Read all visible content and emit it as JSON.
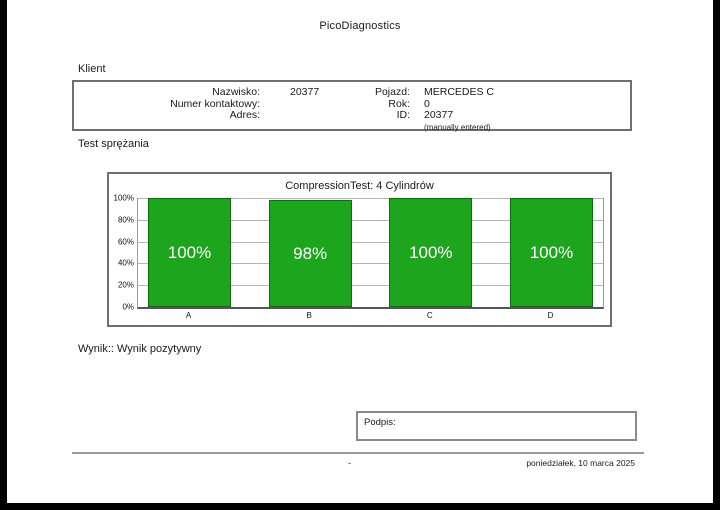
{
  "page": {
    "title": "PicoDiagnostics",
    "footer": {
      "center": "-",
      "date": "poniedziałek, 10 marca 2025"
    }
  },
  "client": {
    "section_label": "Klient",
    "fields_left": [
      {
        "label": "Nazwisko:",
        "value": "20377"
      },
      {
        "label": "Numer kontaktowy:",
        "value": ""
      },
      {
        "label": "Adres:",
        "value": ""
      }
    ],
    "fields_right": [
      {
        "label": "Pojazd:",
        "value": "MERCEDES C"
      },
      {
        "label": "Rok:",
        "value": "0"
      },
      {
        "label": "ID:",
        "value": "20377"
      },
      {
        "label": "",
        "value": "(manually entered)"
      }
    ]
  },
  "test": {
    "section_label": "Test sprężania",
    "result_text": "Wynik:: Wynik pozytywny"
  },
  "chart_data": {
    "type": "bar",
    "title": "CompressionTest: 4 Cylindrów",
    "categories": [
      "A",
      "B",
      "C",
      "D"
    ],
    "values": [
      100,
      98,
      100,
      100
    ],
    "value_labels": [
      "100%",
      "98%",
      "100%",
      "100%"
    ],
    "y_ticks": [
      "100%",
      "80%",
      "60%",
      "40%",
      "20%",
      "0%"
    ],
    "ylim": [
      0,
      100
    ],
    "grid": true,
    "legend": "none",
    "bar_color": "#1ea51e",
    "bar_border_color": "#0c6e0c",
    "value_text_color": "#ffffff"
  },
  "signature": {
    "label": "Podpis:"
  }
}
